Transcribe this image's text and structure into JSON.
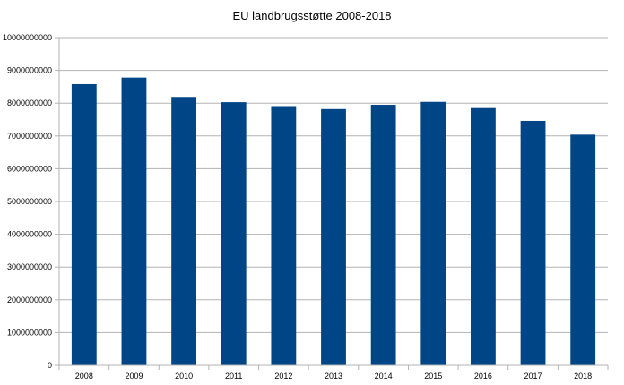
{
  "chart_data": {
    "type": "bar",
    "title": "EU landbrugsstøtte 2008-2018",
    "xlabel": "",
    "ylabel": "",
    "categories": [
      "2008",
      "2009",
      "2010",
      "2011",
      "2012",
      "2013",
      "2014",
      "2015",
      "2016",
      "2017",
      "2018"
    ],
    "series": [
      {
        "values": [
          8580000000,
          8780000000,
          8190000000,
          8030000000,
          7910000000,
          7820000000,
          7950000000,
          8040000000,
          7850000000,
          7460000000,
          7040000000
        ]
      }
    ],
    "ylim": [
      0,
      10000000000
    ],
    "yticks": [
      "0",
      "1000000000",
      "2000000000",
      "3000000000",
      "4000000000",
      "5000000000",
      "6000000000",
      "7000000000",
      "8000000000",
      "9000000000",
      "10000000000"
    ],
    "grid": true,
    "legend": "none",
    "colors": {
      "bar": "#004586",
      "grid": "#b3b3b3",
      "axis": "#b3b3b3"
    }
  }
}
